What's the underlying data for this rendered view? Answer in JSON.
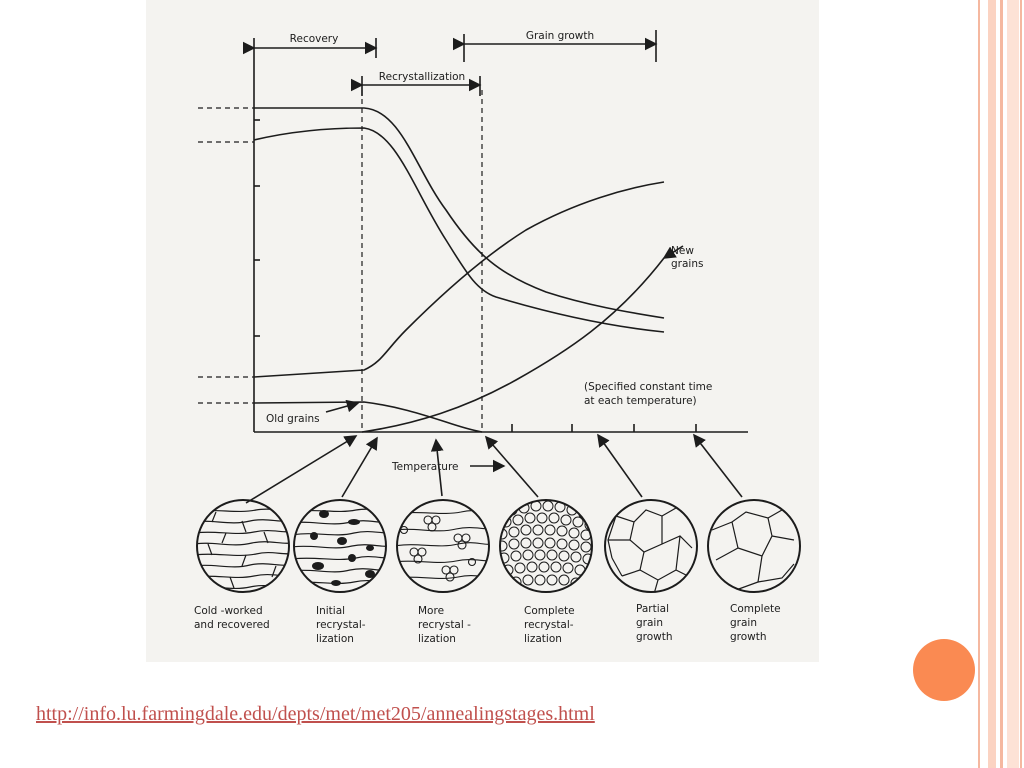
{
  "colors": {
    "accent": "#fa8a52",
    "frame": "#f5b8a0",
    "link": "#c0504d"
  },
  "diagram": {
    "phases": {
      "recovery": "Recovery",
      "recrystallization": "Recrystallization",
      "grain_growth": "Grain growth"
    },
    "labels": {
      "new_grains_1": "New",
      "new_grains_2": "grains",
      "old_grains": "Old grains",
      "note_1": "(Specified constant time",
      "note_2": "at each temperature)",
      "temperature": "Temperature"
    },
    "stages": [
      {
        "line1": "Cold -worked",
        "line2": "and recovered",
        "line3": ""
      },
      {
        "line1": "Initial",
        "line2": "recrystal-",
        "line3": "lization"
      },
      {
        "line1": "More",
        "line2": "recrystal -",
        "line3": "lization"
      },
      {
        "line1": "Complete",
        "line2": "recrystal-",
        "line3": "lization"
      },
      {
        "line1": "Partial",
        "line2": "grain",
        "line3": "growth"
      },
      {
        "line1": "Complete",
        "line2": "grain",
        "line3": "growth"
      }
    ]
  },
  "source_link": "http://info.lu.farmingdale.edu/depts/met/met205/annealingstages.html"
}
